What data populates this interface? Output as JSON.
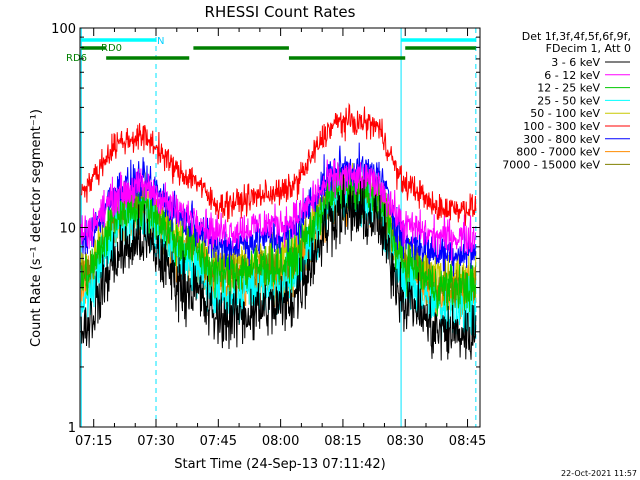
{
  "chart_data": {
    "type": "line",
    "title": "RHESSI Count Rates",
    "xlabel": "Start Time (24-Sep-13 07:11:42)",
    "ylabel": "Count Rate (s⁻¹ detector segment⁻¹)",
    "yscale": "log",
    "ylim": [
      1,
      100
    ],
    "xlim": [
      "07:11:42",
      "08:48:00"
    ],
    "y_ticks": [
      "1",
      "10",
      "100"
    ],
    "x_ticks": [
      "07:15",
      "07:30",
      "07:45",
      "08:00",
      "08:15",
      "08:30",
      "08:45"
    ],
    "legend_header": [
      "Det 1f,3f,4f,5f,6f,9f,",
      "FDecim 1, Att 0"
    ],
    "timestamp": "22-Oct-2021 11:57",
    "legend_position": "right",
    "series": [
      {
        "name": "3 - 6 keV",
        "color": "#000000",
        "x": [
          "07:12",
          "07:22",
          "07:26",
          "07:38",
          "07:45",
          "08:00",
          "08:15",
          "08:22",
          "08:31",
          "08:38",
          "08:47"
        ],
        "values": [
          3.2,
          7.5,
          8.6,
          5.0,
          3.5,
          4.0,
          12.0,
          11.0,
          4.2,
          3.0,
          2.9
        ]
      },
      {
        "name": "6 - 12 keV",
        "color": "#ff00ff",
        "x": [
          "07:12",
          "07:22",
          "07:26",
          "07:38",
          "07:45",
          "08:00",
          "08:15",
          "08:22",
          "08:31",
          "08:38",
          "08:47"
        ],
        "values": [
          9.5,
          15.0,
          16.0,
          11.5,
          9.5,
          10.5,
          18.0,
          17.0,
          10.0,
          9.0,
          9.0
        ]
      },
      {
        "name": "12 - 25 keV",
        "color": "#00c800",
        "x": [
          "07:12",
          "07:22",
          "07:26",
          "07:38",
          "07:45",
          "08:00",
          "08:15",
          "08:22",
          "08:31",
          "08:38",
          "08:47"
        ],
        "values": [
          5.5,
          12.0,
          13.0,
          8.0,
          6.0,
          6.5,
          15.5,
          14.5,
          6.5,
          5.0,
          5.0
        ]
      },
      {
        "name": "25 - 50 keV",
        "color": "#00ffff",
        "x": [
          "07:12",
          "07:22",
          "07:26",
          "07:38",
          "07:45",
          "08:00",
          "08:15",
          "08:22",
          "08:31",
          "08:38",
          "08:47"
        ],
        "values": [
          4.2,
          10.5,
          11.5,
          6.5,
          4.5,
          5.0,
          14.0,
          13.0,
          5.0,
          3.9,
          3.8
        ]
      },
      {
        "name": "50 - 100 keV",
        "color": "#c8c800",
        "x": [
          "07:12",
          "07:22",
          "07:26",
          "07:38",
          "07:45",
          "08:00",
          "08:15",
          "08:22",
          "08:31",
          "08:38",
          "08:47"
        ],
        "values": [
          6.0,
          12.5,
          13.5,
          8.5,
          6.5,
          7.0,
          16.0,
          15.0,
          6.8,
          5.5,
          5.5
        ]
      },
      {
        "name": "100 - 300 keV",
        "color": "#ff0000",
        "x": [
          "07:12",
          "07:22",
          "07:26",
          "07:38",
          "07:45",
          "08:00",
          "08:15",
          "08:22",
          "08:31",
          "08:38",
          "08:47"
        ],
        "values": [
          16.0,
          27.0,
          28.5,
          18.0,
          13.0,
          15.0,
          34.0,
          33.0,
          16.0,
          12.5,
          12.5
        ]
      },
      {
        "name": "300 - 800 keV",
        "color": "#0000ff",
        "x": [
          "07:12",
          "07:22",
          "07:26",
          "07:38",
          "07:45",
          "08:00",
          "08:15",
          "08:22",
          "08:31",
          "08:38",
          "08:47"
        ],
        "values": [
          8.5,
          16.0,
          17.0,
          11.0,
          8.0,
          9.0,
          20.0,
          19.0,
          8.5,
          7.5,
          7.5
        ]
      },
      {
        "name": "800 - 7000 keV",
        "color": "#ff8c00",
        "x": [
          "07:12",
          "07:22",
          "07:26",
          "07:38",
          "07:45",
          "08:00",
          "08:15",
          "08:22",
          "08:31",
          "08:38",
          "08:47"
        ],
        "values": [
          5.0,
          11.0,
          12.0,
          7.0,
          5.2,
          5.5,
          14.5,
          13.5,
          5.8,
          4.6,
          4.6
        ]
      },
      {
        "name": "7000 - 15000 keV",
        "color": "#808000",
        "x": [
          "07:12",
          "07:22",
          "07:26",
          "07:38",
          "07:45",
          "08:00",
          "08:15",
          "08:22",
          "08:31",
          "08:38",
          "08:47"
        ],
        "values": [
          5.8,
          11.5,
          12.5,
          7.8,
          5.8,
          6.2,
          15.0,
          14.0,
          6.2,
          5.0,
          5.0
        ]
      }
    ],
    "annotations": {
      "n_label": "N",
      "rd0_label": "RD0",
      "rd6_label": "RD6",
      "cyan_bars": [
        [
          "07:12",
          "07:30"
        ],
        [
          "08:29",
          "08:47"
        ]
      ],
      "green_bars_rd0": [
        [
          "07:12",
          "07:18"
        ],
        [
          "07:39",
          "08:02"
        ],
        [
          "08:30",
          "08:47"
        ]
      ],
      "green_bars_rd6": [
        [
          "07:18",
          "07:38"
        ],
        [
          "08:02",
          "08:30"
        ]
      ],
      "solid_vlines": [
        "07:12",
        "08:29"
      ],
      "dashed_vlines": [
        "07:30",
        "08:47"
      ]
    }
  }
}
